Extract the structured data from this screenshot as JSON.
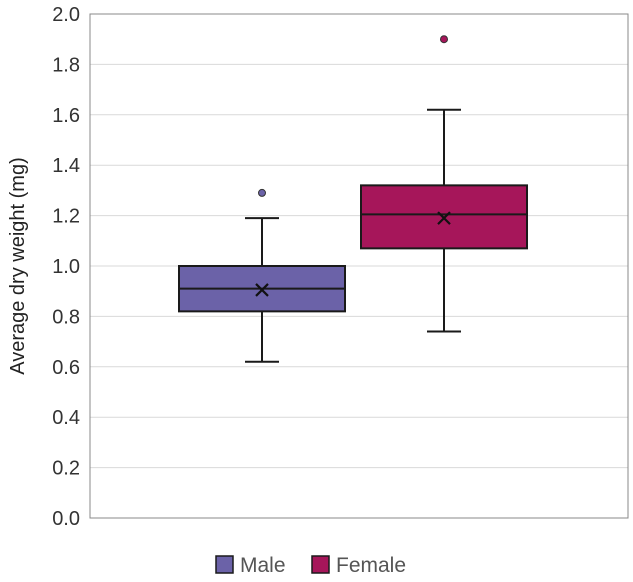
{
  "chart_data": {
    "type": "box",
    "title": "",
    "xlabel": "",
    "ylabel": "Average dry weight (mg)",
    "ylim": [
      0.0,
      2.0
    ],
    "yticks": [
      "0.0",
      "0.2",
      "0.4",
      "0.6",
      "0.8",
      "1.0",
      "1.2",
      "1.4",
      "1.6",
      "1.8",
      "2.0"
    ],
    "grid": true,
    "legend_position": "bottom",
    "series": [
      {
        "name": "Male",
        "color": "#6B62A8",
        "whisker_low": 0.62,
        "q1": 0.82,
        "median": 0.91,
        "q3": 1.0,
        "whisker_high": 1.19,
        "mean": 0.905,
        "outliers": [
          1.29
        ]
      },
      {
        "name": "Female",
        "color": "#A6165A",
        "whisker_low": 0.74,
        "q1": 1.07,
        "median": 1.205,
        "q3": 1.32,
        "whisker_high": 1.62,
        "mean": 1.19,
        "outliers": [
          1.9
        ]
      }
    ]
  }
}
